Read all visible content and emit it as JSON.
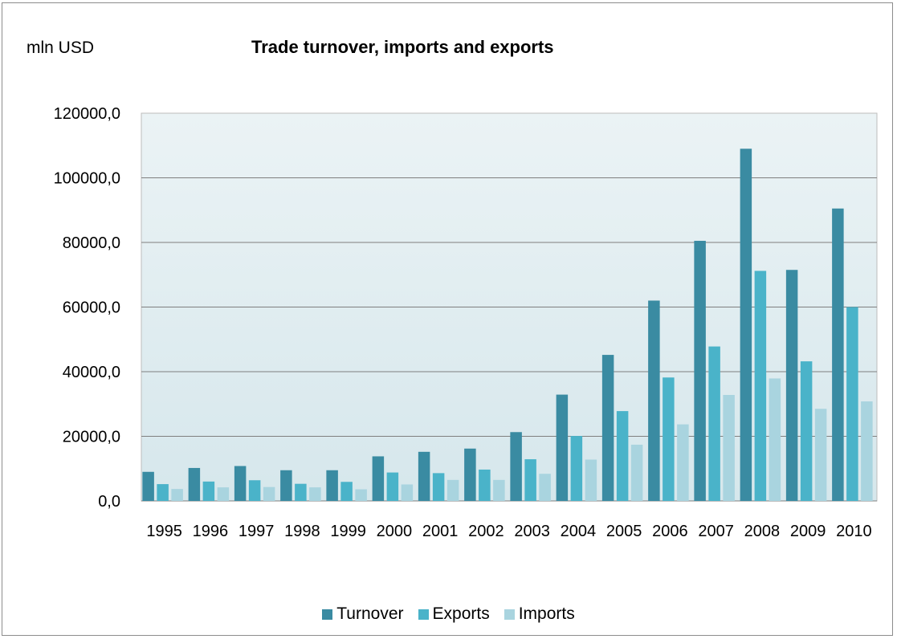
{
  "chart_data": {
    "type": "bar",
    "title": "Trade turnover, imports and exports",
    "unit_label": "mln USD",
    "categories": [
      "1995",
      "1996",
      "1997",
      "1998",
      "1999",
      "2000",
      "2001",
      "2002",
      "2003",
      "2004",
      "2005",
      "2006",
      "2007",
      "2008",
      "2009",
      "2010"
    ],
    "series": [
      {
        "name": "Turnover",
        "color": "#3a8ba2",
        "values": [
          9000,
          10200,
          10800,
          9500,
          9500,
          13800,
          15200,
          16200,
          21300,
          32900,
          45200,
          62000,
          80500,
          109000,
          71500,
          90500
        ]
      },
      {
        "name": "Exports",
        "color": "#4ab3c9",
        "values": [
          5200,
          6000,
          6400,
          5300,
          5900,
          8800,
          8600,
          9700,
          12900,
          20100,
          27800,
          38200,
          47800,
          71200,
          43200,
          60000
        ]
      },
      {
        "name": "Imports",
        "color": "#a9d4df",
        "values": [
          3700,
          4200,
          4300,
          4200,
          3600,
          5100,
          6500,
          6500,
          8400,
          12800,
          17400,
          23700,
          32800,
          37900,
          28500,
          30800
        ]
      }
    ],
    "yticks": [
      "0,0",
      "20000,0",
      "40000,0",
      "60000,0",
      "80000,0",
      "100000,0",
      "120000,0"
    ],
    "ylim": [
      0,
      120000
    ],
    "grid": true,
    "legend_position": "bottom"
  }
}
